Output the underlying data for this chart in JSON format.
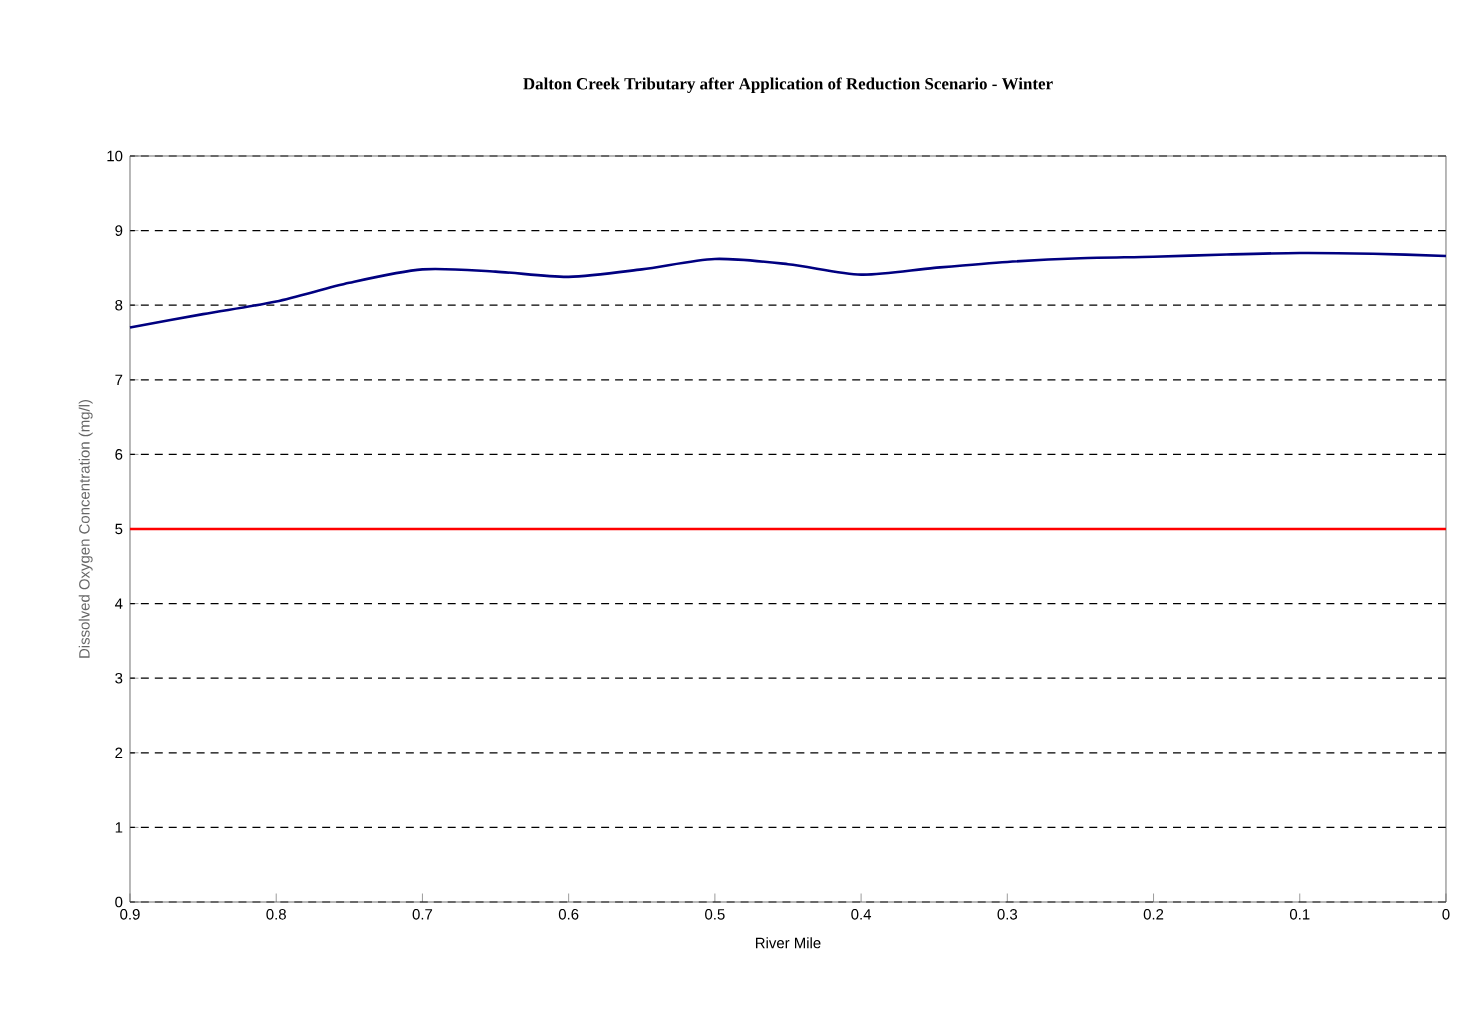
{
  "chart_data": {
    "type": "line",
    "title": "Dalton Creek Tributary after Application of Reduction Scenario - Winter",
    "xlabel": "River Mile",
    "ylabel": "Dissolved Oxygen Concentration (mg/l)",
    "series": [
      {
        "color": "#000080",
        "x": [
          0.9,
          0.85,
          0.8,
          0.75,
          0.7,
          0.65,
          0.6,
          0.55,
          0.5,
          0.45,
          0.4,
          0.35,
          0.3,
          0.25,
          0.2,
          0.15,
          0.1,
          0.05,
          0
        ],
        "values": [
          7.7,
          7.88,
          8.05,
          8.3,
          8.48,
          8.45,
          8.38,
          8.48,
          8.62,
          8.55,
          8.41,
          8.5,
          8.58,
          8.63,
          8.65,
          8.68,
          8.7,
          8.69,
          8.66
        ]
      }
    ],
    "xlim": [
      0.9,
      0
    ],
    "xticks": [
      0.9,
      0.8,
      0.7,
      0.6,
      0.5,
      0.4,
      0.3,
      0.2,
      0.1,
      0
    ],
    "ylim": [
      0,
      10
    ],
    "yticks": [
      0,
      1,
      2,
      3,
      4,
      5,
      6,
      7,
      8,
      9,
      10
    ],
    "ref_lines": [
      {
        "axis": "y",
        "value": 5,
        "color": "#ff0000",
        "line_style": "solid"
      }
    ],
    "grid": "y",
    "line_style": "solid",
    "marker": "none"
  }
}
